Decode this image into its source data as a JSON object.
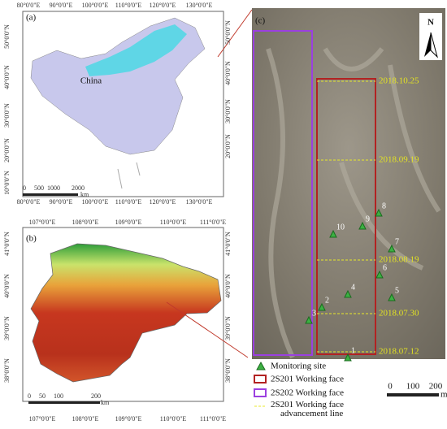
{
  "panel_a": {
    "label": "(a)",
    "lon_labels": [
      "80°0'0\"E",
      "90°0'0\"E",
      "100°0'0\"E",
      "110°0'0\"E",
      "120°0'0\"E",
      "130°0'0\"E"
    ],
    "lat_labels": [
      "50°0'0\"N",
      "40°0'0\"N",
      "30°0'0\"N",
      "20°0'0\"N",
      "10°0'0\"N"
    ],
    "country": "China",
    "scale": [
      "0",
      "500",
      "1000",
      "2000"
    ],
    "scale_unit": "km"
  },
  "panel_b": {
    "label": "(b)",
    "lon_labels": [
      "107°0'0\"E",
      "108°0'0\"E",
      "109°0'0\"E",
      "110°0'0\"E",
      "111°0'0\"E"
    ],
    "lat_labels": [
      "41°0'0\"N",
      "40°0'0\"N",
      "39°0'0\"N",
      "38°0'0\"N"
    ],
    "scale": [
      "0",
      "50",
      "100",
      "200"
    ],
    "scale_unit": "km"
  },
  "panel_c": {
    "label": "(c)",
    "north": "N",
    "dates": [
      "2018.10.25",
      "2018.09.19",
      "2018.08.19",
      "2018.07.30",
      "2018.07.12"
    ],
    "sites": [
      "1",
      "2",
      "3",
      "4",
      "5",
      "6",
      "7",
      "8",
      "9",
      "10"
    ],
    "scale": [
      "0",
      "100",
      "200"
    ],
    "scale_unit": "m"
  },
  "legend": [
    "Monitoring site",
    "2S201 Working face",
    "2S202 Working face",
    "2S201 Working face advancement line"
  ]
}
